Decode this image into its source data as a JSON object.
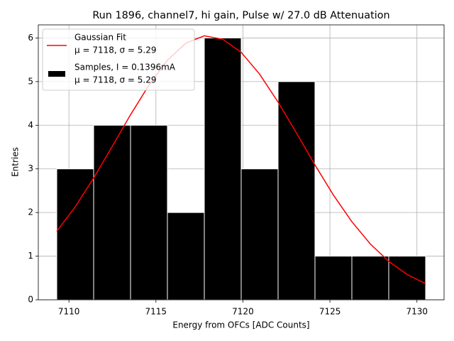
{
  "chart_data": {
    "type": "histogram",
    "title": "Run 1896, channel7, hi gain, Pulse w/ 27.0 dB Attenuation",
    "x_label": "Energy from OFCs [ADC Counts]",
    "y_label": "Entries",
    "bins": [
      7109.3,
      7111.42,
      7113.54,
      7115.66,
      7117.78,
      7119.9,
      7122.02,
      7124.14,
      7126.26,
      7128.38,
      7130.5
    ],
    "counts": [
      3,
      4,
      4,
      2,
      6,
      3,
      5,
      1,
      1,
      1
    ],
    "name": "Samples, I = 0.1396mA",
    "stats": "μ = 7118, σ = 5.29",
    "color": "#000000",
    "edgecolor": "#ffffff",
    "fit": {
      "type": "line",
      "name": "Gaussian Fit",
      "stats": "μ = 7118, σ = 5.29",
      "color": "#ff0000",
      "x": [
        7109.3,
        7110.36,
        7111.42,
        7112.48,
        7113.54,
        7114.6,
        7115.66,
        7116.72,
        7117.78,
        7118.84,
        7119.9,
        7120.96,
        7122.02,
        7123.08,
        7124.14,
        7125.2,
        7126.26,
        7127.32,
        7128.38,
        7129.44,
        7130.5
      ],
      "values": [
        1.57,
        2.13,
        2.79,
        3.51,
        4.24,
        4.92,
        5.49,
        5.88,
        6.05,
        5.97,
        5.67,
        5.17,
        4.53,
        3.82,
        3.09,
        2.4,
        1.79,
        1.28,
        0.88,
        0.58,
        0.37
      ]
    },
    "xlim": [
      7108.24,
      7131.56
    ],
    "ylim": [
      0,
      6.3
    ],
    "xticks": [
      7110,
      7115,
      7120,
      7125,
      7130
    ],
    "yticks": [
      0,
      1,
      2,
      3,
      4,
      5,
      6
    ],
    "grid": true,
    "legend": "upper left"
  }
}
